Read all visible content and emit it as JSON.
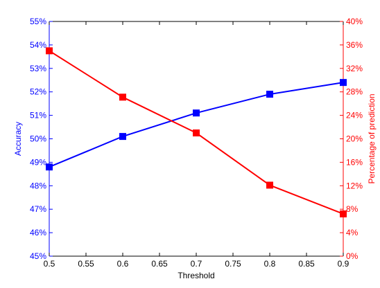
{
  "chart_data": {
    "type": "line",
    "xlabel": "Threshold",
    "ylabel_left": "Accuracy",
    "ylabel_right": "Percentage of prediction",
    "xlim": [
      0.5,
      0.9
    ],
    "x_ticks": [
      "0.5",
      "0.55",
      "0.6",
      "0.65",
      "0.7",
      "0.75",
      "0.8",
      "0.85",
      "0.9"
    ],
    "ylim_left": [
      45,
      55
    ],
    "y_left_ticks": [
      "45%",
      "46%",
      "47%",
      "48%",
      "49%",
      "50%",
      "51%",
      "52%",
      "53%",
      "54%",
      "55%"
    ],
    "ylim_right": [
      0,
      40
    ],
    "y_right_ticks": [
      "0%",
      "4%",
      "8%",
      "12%",
      "16%",
      "20%",
      "24%",
      "28%",
      "32%",
      "36%",
      "40%"
    ],
    "grid": false,
    "x": [
      0.5,
      0.6,
      0.7,
      0.8,
      0.9
    ],
    "series": [
      {
        "axis": "left",
        "color": "#0000ff",
        "marker": "square",
        "values": [
          48.8,
          50.1,
          51.1,
          51.9,
          52.4
        ]
      },
      {
        "axis": "right",
        "color": "#ff0000",
        "marker": "square",
        "values": [
          35.0,
          27.1,
          21.0,
          12.1,
          7.2
        ]
      }
    ],
    "colors": {
      "left_axis": "#0000ff",
      "right_axis": "#ff0000",
      "frame": "#000000"
    }
  }
}
